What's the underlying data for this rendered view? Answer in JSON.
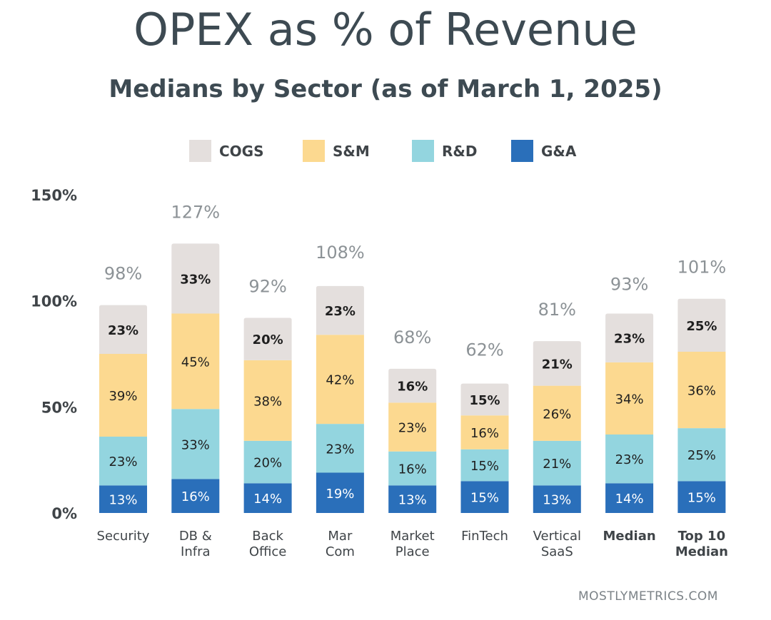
{
  "title": "OPEX as % of Revenue",
  "subtitle": "Medians by Sector (as of March 1, 2025)",
  "footer": "MOSTLYMETRICS.COM",
  "colors": {
    "COGS": "#e4dfdd",
    "S&M": "#fcd990",
    "R&D": "#93d5df",
    "G&A": "#2a6fba",
    "total_label": "#8c9296",
    "axis_label": "#3f4448",
    "text_dark": "#1f1f1f",
    "text_light": "#ffffff"
  },
  "chart_data": {
    "type": "bar",
    "stacked": true,
    "categories": [
      "Security",
      "DB &\nInfra",
      "Back\nOffice",
      "Mar\nCom",
      "Market\nPlace",
      "FinTech",
      "Vertical\nSaaS",
      "Median",
      "Top 10\nMedian"
    ],
    "bold_categories": [
      "Median",
      "Top 10\nMedian"
    ],
    "series": [
      {
        "name": "G&A",
        "values": [
          13,
          16,
          14,
          19,
          13,
          15,
          13,
          14,
          15
        ]
      },
      {
        "name": "R&D",
        "values": [
          23,
          33,
          20,
          23,
          16,
          15,
          21,
          23,
          25
        ]
      },
      {
        "name": "S&M",
        "values": [
          39,
          45,
          38,
          42,
          23,
          16,
          26,
          34,
          36
        ]
      },
      {
        "name": "COGS",
        "values": [
          23,
          33,
          20,
          23,
          16,
          15,
          21,
          23,
          25
        ]
      }
    ],
    "value_labels": {
      "G&A": [
        "13%",
        "16%",
        "14%",
        "19%",
        "13%",
        "15%",
        "13%",
        "14%",
        "15%"
      ],
      "R&D": [
        "23%",
        "33%",
        "20%",
        "23%",
        "16%",
        "15%",
        "21%",
        "23%",
        "25%"
      ],
      "S&M": [
        "39%",
        "45%",
        "38%",
        "42%",
        "23%",
        "16%",
        "26%",
        "34%",
        "36%"
      ],
      "COGS": [
        "23%",
        "33%",
        "20%",
        "23%",
        "16%",
        "15%",
        "21%",
        "23%",
        "25%"
      ]
    },
    "totals": [
      98,
      127,
      92,
      108,
      68,
      62,
      81,
      93,
      101
    ],
    "total_labels": [
      "98%",
      "127%",
      "92%",
      "108%",
      "68%",
      "62%",
      "81%",
      "93%",
      "101%"
    ],
    "legend": [
      "COGS",
      "S&M",
      "R&D",
      "G&A"
    ],
    "legend_position": "top",
    "yticks": [
      "0%",
      "50%",
      "100%",
      "150%"
    ],
    "ytick_values": [
      0,
      50,
      100,
      150
    ],
    "ylim": [
      0,
      150
    ],
    "grid": false
  }
}
